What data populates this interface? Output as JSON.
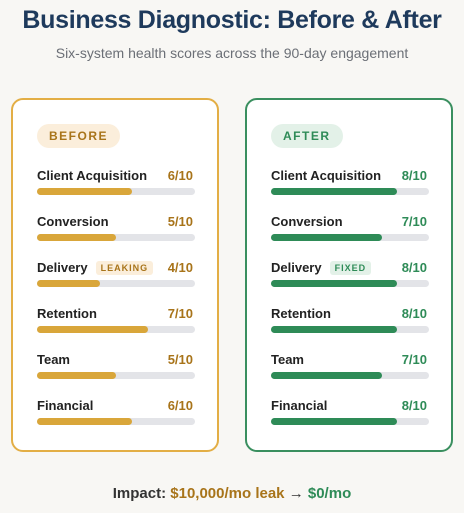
{
  "header": {
    "title": "Business Diagnostic: Before & After",
    "subtitle": "Six-system health scores across the 90-day engagement"
  },
  "panels": [
    {
      "badge": "BEFORE",
      "color": "#d9a63a",
      "text_color": "#a8741a",
      "border": "#e3ae45",
      "badge_bg": "#fbeedb",
      "max": 10,
      "items": [
        {
          "name": "Client Acquisition",
          "value": 6,
          "value_label": "6/10"
        },
        {
          "name": "Conversion",
          "value": 5,
          "value_label": "5/10"
        },
        {
          "name": "Delivery",
          "tag": "LEAKING",
          "value": 4,
          "value_label": "4/10"
        },
        {
          "name": "Retention",
          "value": 7,
          "value_label": "7/10"
        },
        {
          "name": "Team",
          "value": 5,
          "value_label": "5/10"
        },
        {
          "name": "Financial",
          "value": 6,
          "value_label": "6/10"
        }
      ]
    },
    {
      "badge": "AFTER",
      "color": "#2e8b57",
      "text_color": "#2e8b57",
      "border": "#3a8f5f",
      "badge_bg": "#e3f1e8",
      "max": 10,
      "items": [
        {
          "name": "Client Acquisition",
          "value": 8,
          "value_label": "8/10"
        },
        {
          "name": "Conversion",
          "value": 7,
          "value_label": "7/10"
        },
        {
          "name": "Delivery",
          "tag": "FIXED",
          "value": 8,
          "value_label": "8/10"
        },
        {
          "name": "Retention",
          "value": 8,
          "value_label": "8/10"
        },
        {
          "name": "Team",
          "value": 7,
          "value_label": "7/10"
        },
        {
          "name": "Financial",
          "value": 8,
          "value_label": "8/10"
        }
      ]
    }
  ],
  "footer": {
    "label": "Impact:",
    "before": "$10,000/mo leak",
    "arrow": "→",
    "after": "$0/mo"
  }
}
